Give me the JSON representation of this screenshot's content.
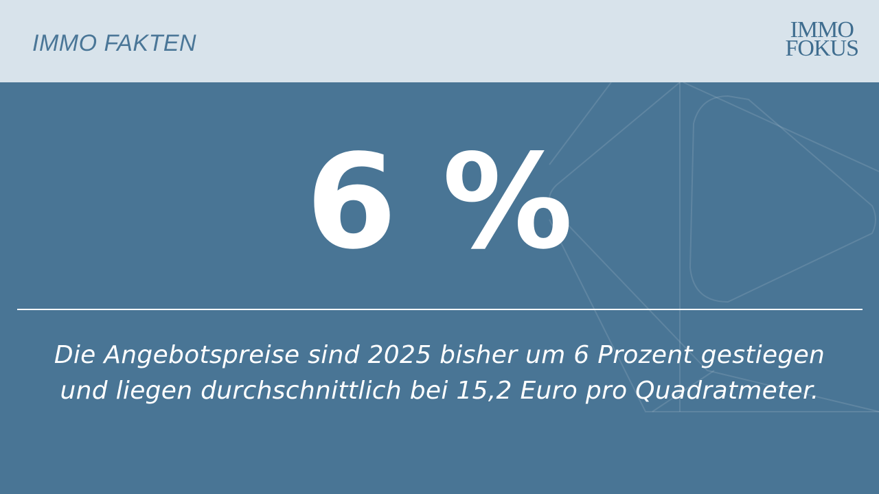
{
  "header": {
    "title": "IMMO FAKTEN"
  },
  "logo": {
    "line1": "IMMO",
    "line2": "FOKUS"
  },
  "main": {
    "headline": "6 %",
    "description": "Die Angebotspreise sind 2025 bisher um 6 Prozent gestiegen und liegen durchschnittlich bei 15,2 Euro pro Quadratmeter."
  },
  "colors": {
    "background": "#497595",
    "header": "#d8e3eb",
    "accent": "#4a7697",
    "text": "#ffffff"
  }
}
